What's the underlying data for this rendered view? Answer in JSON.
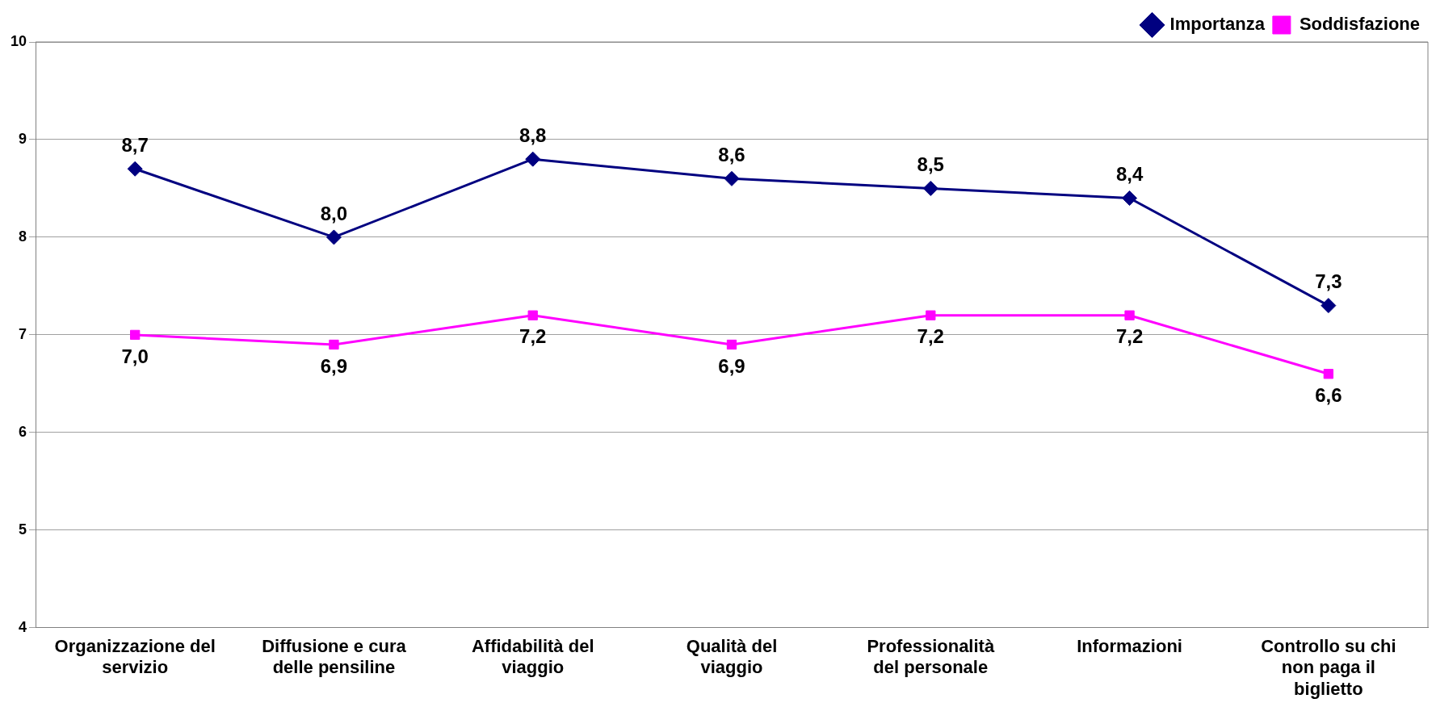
{
  "chart_data": {
    "type": "line",
    "categories": [
      "Organizzazione del servizio",
      "Diffusione e cura delle pensiline",
      "Affidabilità del viaggio",
      "Qualità del viaggio",
      "Professionalità del personale",
      "Informazioni",
      "Controllo su chi non paga il biglietto"
    ],
    "series": [
      {
        "name": "Importanza",
        "color": "#000080",
        "marker": "diamond",
        "values": [
          8.7,
          8.0,
          8.8,
          8.6,
          8.5,
          8.4,
          7.3
        ],
        "value_labels": [
          "8,7",
          "8,0",
          "8,8",
          "8,6",
          "8,5",
          "8,4",
          "7,3"
        ]
      },
      {
        "name": "Soddisfazione",
        "color": "#ff00ff",
        "marker": "square",
        "values": [
          7.0,
          6.9,
          7.2,
          6.9,
          7.2,
          7.2,
          6.6
        ],
        "value_labels": [
          "7,0",
          "6,9",
          "7,2",
          "6,9",
          "7,2",
          "7,2",
          "6,6"
        ]
      }
    ],
    "ylim": [
      4,
      10
    ],
    "yticks": [
      4,
      5,
      6,
      7,
      8,
      9,
      10
    ],
    "grid": "y",
    "legend": "top right",
    "line_style": "solid"
  }
}
